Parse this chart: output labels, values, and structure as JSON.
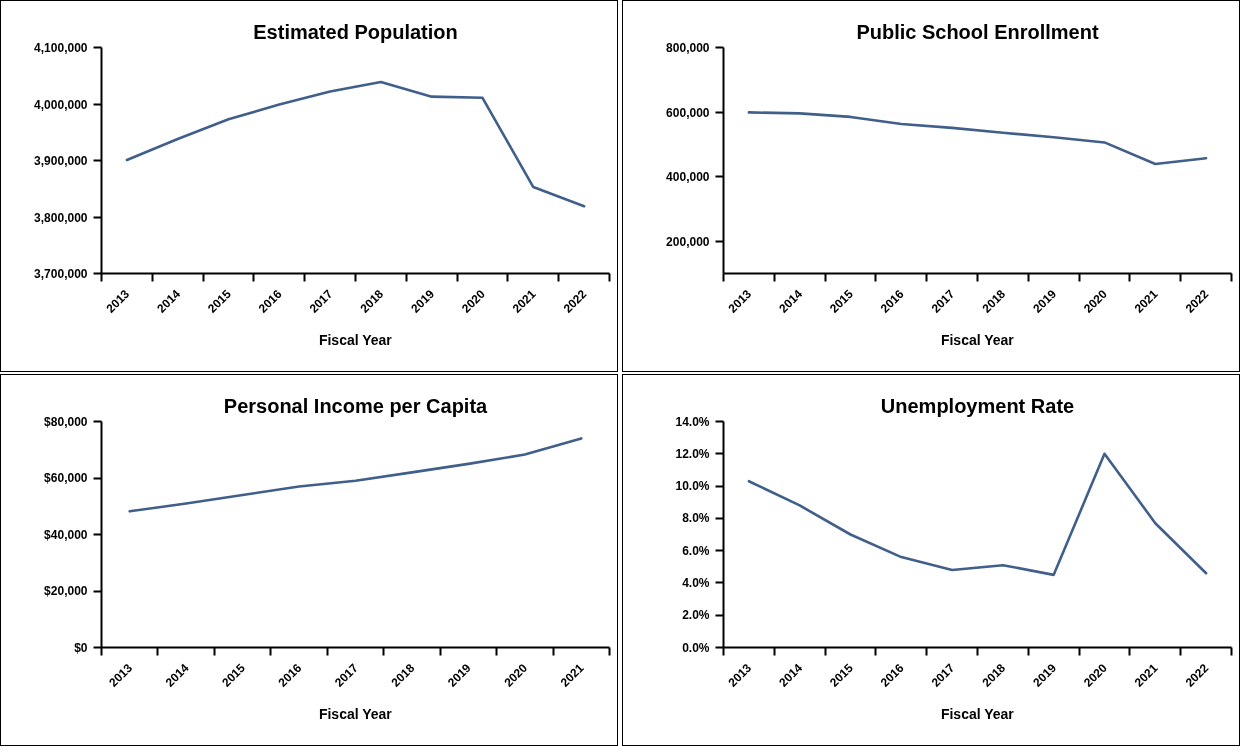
{
  "chart_data": [
    {
      "type": "line",
      "title": "Estimated Population",
      "xlabel": "Fiscal Year",
      "categories": [
        "2013",
        "2014",
        "2015",
        "2016",
        "2017",
        "2018",
        "2019",
        "2020",
        "2021",
        "2022"
      ],
      "series": [
        {
          "color": "#415f8b",
          "values": [
            3901000,
            3938000,
            3973000,
            3999000,
            4022000,
            4039000,
            4013000,
            4011000,
            3853000,
            3819000
          ]
        }
      ],
      "ylim": [
        3700000,
        4100000
      ],
      "yticks": [
        {
          "value": 3700000,
          "label": "3,700,000"
        },
        {
          "value": 3800000,
          "label": "3,800,000"
        },
        {
          "value": 3900000,
          "label": "3,900,000"
        },
        {
          "value": 4000000,
          "label": "4,000,000"
        },
        {
          "value": 4100000,
          "label": "4,100,000"
        }
      ]
    },
    {
      "type": "line",
      "title": "Public School Enrollment",
      "xlabel": "Fiscal Year",
      "categories": [
        "2013",
        "2014",
        "2015",
        "2016",
        "2017",
        "2018",
        "2019",
        "2020",
        "2021",
        "2022"
      ],
      "series": [
        {
          "color": "#415f8b",
          "values": [
            599000,
            596000,
            585000,
            563000,
            551000,
            536000,
            522000,
            506000,
            439000,
            457000
          ]
        }
      ],
      "ylim": [
        100000,
        800000
      ],
      "yticks": [
        {
          "value": 200000,
          "label": "200,000"
        },
        {
          "value": 400000,
          "label": "400,000"
        },
        {
          "value": 600000,
          "label": "600,000"
        },
        {
          "value": 800000,
          "label": "800,000"
        }
      ]
    },
    {
      "type": "line",
      "title": "Personal Income per Capita",
      "xlabel": "Fiscal Year",
      "categories": [
        "2013",
        "2014",
        "2015",
        "2016",
        "2017",
        "2018",
        "2019",
        "2020",
        "2021"
      ],
      "series": [
        {
          "color": "#415f8b",
          "values": [
            48200,
            51000,
            54000,
            57000,
            59000,
            62000,
            65000,
            68300,
            74000
          ]
        }
      ],
      "ylim": [
        0,
        80000
      ],
      "yticks": [
        {
          "value": 0,
          "label": "$0"
        },
        {
          "value": 20000,
          "label": "$20,000"
        },
        {
          "value": 40000,
          "label": "$40,000"
        },
        {
          "value": 60000,
          "label": "$60,000"
        },
        {
          "value": 80000,
          "label": "$80,000"
        }
      ]
    },
    {
      "type": "line",
      "title": "Unemployment Rate",
      "xlabel": "Fiscal Year",
      "categories": [
        "2013",
        "2014",
        "2015",
        "2016",
        "2017",
        "2018",
        "2019",
        "2020",
        "2021",
        "2022"
      ],
      "series": [
        {
          "color": "#415f8b",
          "values": [
            10.3,
            8.8,
            7.0,
            5.6,
            4.8,
            5.1,
            4.5,
            12.0,
            7.7,
            4.6
          ]
        }
      ],
      "ylim": [
        0,
        14
      ],
      "yticks": [
        {
          "value": 0,
          "label": "0.0%"
        },
        {
          "value": 2,
          "label": "2.0%"
        },
        {
          "value": 4,
          "label": "4.0%"
        },
        {
          "value": 6,
          "label": "6.0%"
        },
        {
          "value": 8,
          "label": "8.0%"
        },
        {
          "value": 10,
          "label": "10.0%"
        },
        {
          "value": 12,
          "label": "12.0%"
        },
        {
          "value": 14,
          "label": "14.0%"
        }
      ]
    }
  ]
}
